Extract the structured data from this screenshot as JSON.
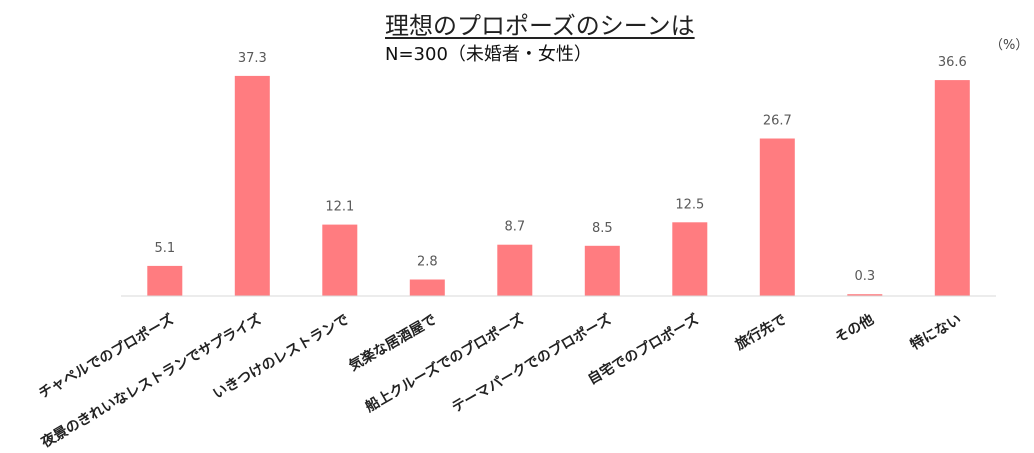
{
  "chart_data": {
    "type": "bar",
    "title": "理想のプロポーズのシーンは",
    "subtitle": "N=300（未婚者・女性）",
    "unit": "（%）",
    "categories": [
      "チャペルでのプロポーズ",
      "夜景のきれいなレストランでサプライズ",
      "いきつけのレストランで",
      "気楽な居酒屋で",
      "船上クルーズでのプロポーズ",
      "テーマパークでのプロポーズ",
      "自宅でのプロポーズ",
      "旅行先で",
      "その他",
      "特にない"
    ],
    "values": [
      5.1,
      37.3,
      12.1,
      2.8,
      8.7,
      8.5,
      12.5,
      26.7,
      0.3,
      36.6
    ],
    "value_labels": [
      "5.1",
      "37.3",
      "12.1",
      "2.8",
      "8.7",
      "8.5",
      "12.5",
      "26.7",
      "0.3",
      "36.6"
    ],
    "ylim": [
      0,
      40
    ],
    "grid": false,
    "colors": {
      "bar": "#ff7c80",
      "axis": "#d9d9d9",
      "label": "#595959",
      "category": "#222222"
    }
  }
}
